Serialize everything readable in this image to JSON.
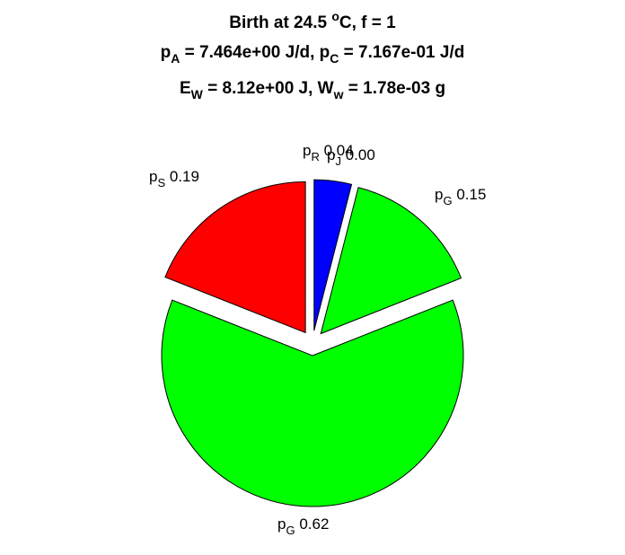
{
  "chart_data": {
    "type": "pie",
    "title_lines": [
      {
        "parts": [
          {
            "t": "Birth at 24.5 "
          },
          {
            "t": "o",
            "sup": true
          },
          {
            "t": "C, f = 1"
          }
        ]
      },
      {
        "parts": [
          {
            "t": "p"
          },
          {
            "t": "A",
            "sub": true
          },
          {
            "t": " = 7.464e+00 J/d, p"
          },
          {
            "t": "C",
            "sub": true
          },
          {
            "t": " = 7.167e-01 J/d"
          }
        ]
      },
      {
        "parts": [
          {
            "t": "E"
          },
          {
            "t": "W",
            "sub": true
          },
          {
            "t": " = 8.12e+00 J, W"
          },
          {
            "t": "w",
            "sub": true
          },
          {
            "t": " = 1.78e-03 g"
          }
        ]
      }
    ],
    "slices": [
      {
        "sym": "p",
        "sub": "R",
        "label_value": "0.04",
        "value": 0.04,
        "color": "#0000ff"
      },
      {
        "sym": "p",
        "sub": "J",
        "label_value": "0.00",
        "value": 0.0,
        "color": "#ff00ff"
      },
      {
        "sym": "p",
        "sub": "G",
        "label_value": "0.15",
        "value": 0.15,
        "color": "#00ff00"
      },
      {
        "sym": "p",
        "sub": "G",
        "label_value": "0.62",
        "value": 0.62,
        "color": "#00ff00"
      },
      {
        "sym": "p",
        "sub": "S",
        "label_value": "0.19",
        "value": 0.19,
        "color": "#ff0000"
      }
    ]
  }
}
